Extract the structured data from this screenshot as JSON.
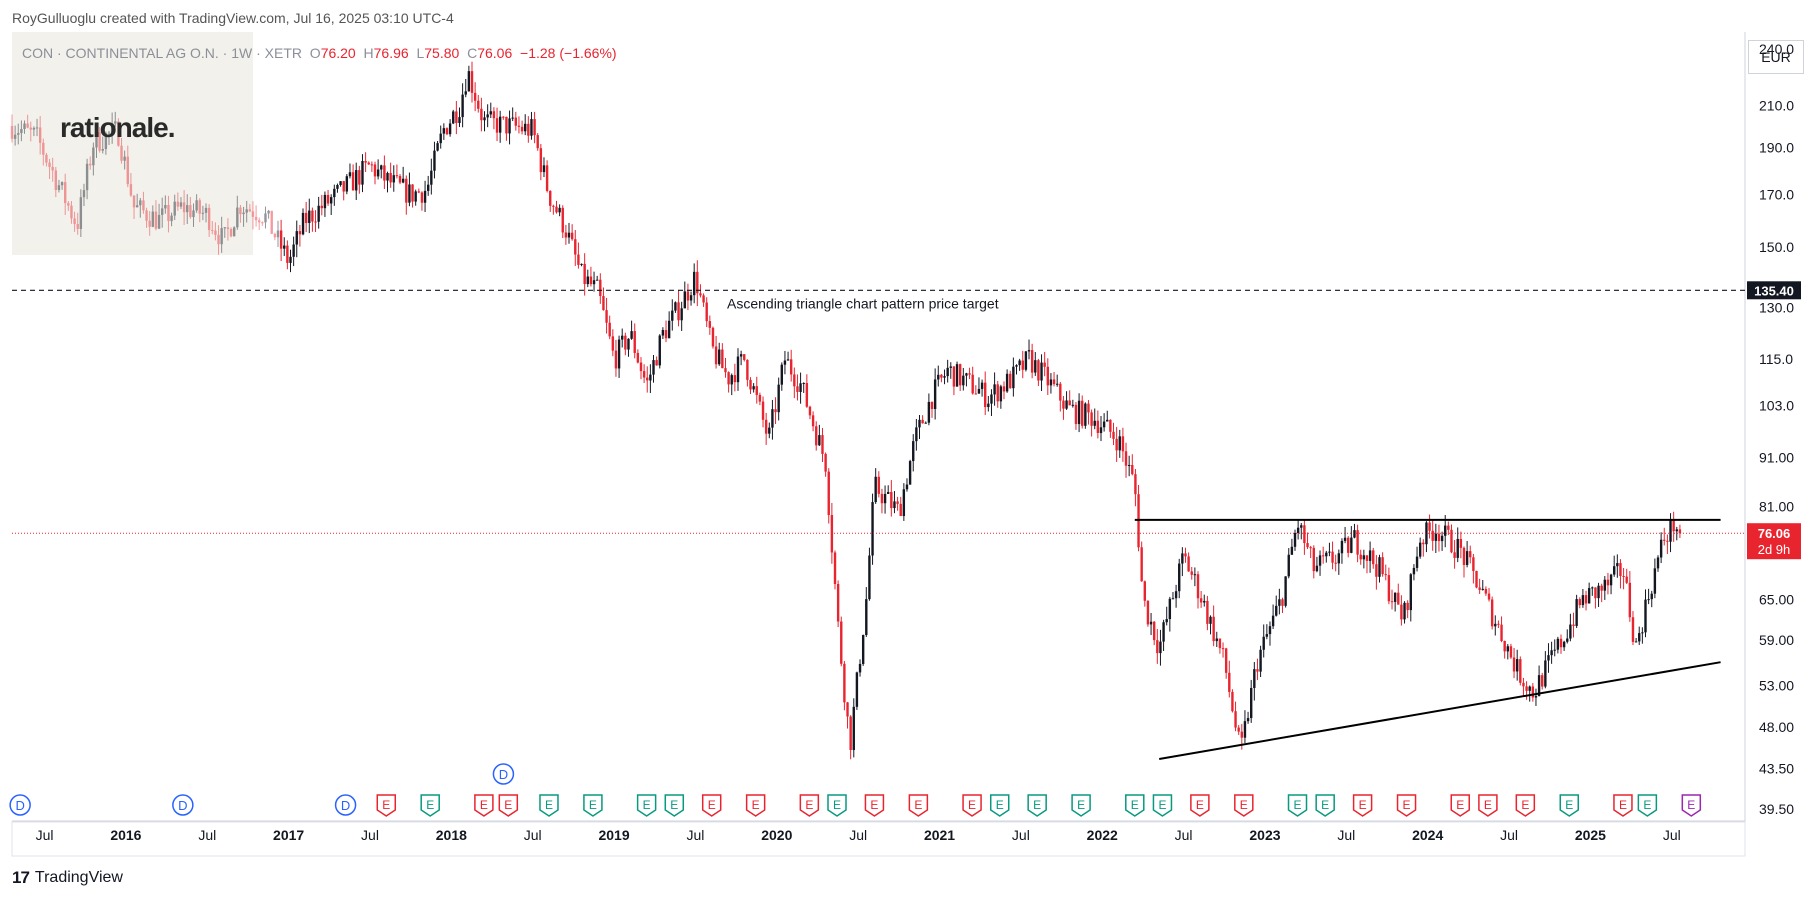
{
  "header": {
    "credit": "RoyGulluoglu created with TradingView.com, Jul 16, 2025 03:10 UTC-4",
    "symbol_desc": "CON · CONTINENTAL AG O.N. · 1W · XETR",
    "open_label": "O",
    "open": "76.20",
    "high_label": "H",
    "high": "76.96",
    "low_label": "L",
    "low": "75.80",
    "close_label": "C",
    "close": "76.06",
    "change": "−1.28 (−1.66%)"
  },
  "logo_text": "rationale.",
  "currency": "EUR",
  "footer": {
    "brand": "TradingView",
    "mark": "17"
  },
  "colors": {
    "up": "#131722",
    "down": "#e8242f",
    "accent": "#e8242f",
    "event_d": "#2962ff",
    "event_e_red": "#e8242f",
    "event_e_green": "#089981"
  },
  "chart_data": {
    "type": "candlestick",
    "price_axis_ticks": [
      240.0,
      210.0,
      190.0,
      170.0,
      150.0,
      130.0,
      115.0,
      103.0,
      91.0,
      81.0,
      65.0,
      59.0,
      53.0,
      48.0,
      43.5,
      39.5
    ],
    "time_axis_ticks": [
      {
        "label": "Jul",
        "t": 2015.5
      },
      {
        "label": "2016",
        "t": 2016.0
      },
      {
        "label": "Jul",
        "t": 2016.5
      },
      {
        "label": "2017",
        "t": 2017.0
      },
      {
        "label": "Jul",
        "t": 2017.5
      },
      {
        "label": "2018",
        "t": 2018.0
      },
      {
        "label": "Jul",
        "t": 2018.5
      },
      {
        "label": "2019",
        "t": 2019.0
      },
      {
        "label": "Jul",
        "t": 2019.5
      },
      {
        "label": "2020",
        "t": 2020.0
      },
      {
        "label": "Jul",
        "t": 2020.5
      },
      {
        "label": "2021",
        "t": 2021.0
      },
      {
        "label": "Jul",
        "t": 2021.5
      },
      {
        "label": "2022",
        "t": 2022.0
      },
      {
        "label": "Jul",
        "t": 2022.5
      },
      {
        "label": "2023",
        "t": 2023.0
      },
      {
        "label": "Jul",
        "t": 2023.5
      },
      {
        "label": "2024",
        "t": 2024.0
      },
      {
        "label": "Jul",
        "t": 2024.5
      },
      {
        "label": "2025",
        "t": 2025.0
      },
      {
        "label": "Jul",
        "t": 2025.5
      }
    ],
    "y_scale": "log",
    "ylim": [
      38.5,
      250
    ],
    "xlim": [
      2015.3,
      2025.95
    ],
    "price_path": [
      [
        2015.3,
        200
      ],
      [
        2015.45,
        195
      ],
      [
        2015.6,
        172
      ],
      [
        2015.7,
        158
      ],
      [
        2015.8,
        192
      ],
      [
        2015.95,
        198
      ],
      [
        2016.05,
        165
      ],
      [
        2016.2,
        160
      ],
      [
        2016.35,
        165
      ],
      [
        2016.5,
        162
      ],
      [
        2016.6,
        152
      ],
      [
        2016.7,
        166
      ],
      [
        2016.85,
        162
      ],
      [
        2017.0,
        145
      ],
      [
        2017.1,
        160
      ],
      [
        2017.3,
        170
      ],
      [
        2017.5,
        182
      ],
      [
        2017.6,
        176
      ],
      [
        2017.75,
        170
      ],
      [
        2017.85,
        172
      ],
      [
        2017.95,
        198
      ],
      [
        2018.05,
        210
      ],
      [
        2018.1,
        228
      ],
      [
        2018.2,
        202
      ],
      [
        2018.35,
        200
      ],
      [
        2018.5,
        198
      ],
      [
        2018.6,
        170
      ],
      [
        2018.7,
        157
      ],
      [
        2018.8,
        140
      ],
      [
        2018.9,
        135
      ],
      [
        2019.0,
        115
      ],
      [
        2019.1,
        122
      ],
      [
        2019.2,
        108
      ],
      [
        2019.3,
        122
      ],
      [
        2019.4,
        130
      ],
      [
        2019.5,
        140
      ],
      [
        2019.6,
        118
      ],
      [
        2019.7,
        110
      ],
      [
        2019.8,
        115
      ],
      [
        2019.95,
        95
      ],
      [
        2020.05,
        115
      ],
      [
        2020.15,
        108
      ],
      [
        2020.3,
        90
      ],
      [
        2020.38,
        60
      ],
      [
        2020.45,
        46
      ],
      [
        2020.55,
        65
      ],
      [
        2020.6,
        85
      ],
      [
        2020.75,
        80
      ],
      [
        2020.85,
        95
      ],
      [
        2020.95,
        105
      ],
      [
        2021.05,
        112
      ],
      [
        2021.2,
        108
      ],
      [
        2021.3,
        105
      ],
      [
        2021.45,
        110
      ],
      [
        2021.55,
        115
      ],
      [
        2021.65,
        110
      ],
      [
        2021.8,
        102
      ],
      [
        2021.95,
        100
      ],
      [
        2022.1,
        95
      ],
      [
        2022.2,
        85
      ],
      [
        2022.25,
        65
      ],
      [
        2022.35,
        58
      ],
      [
        2022.5,
        72
      ],
      [
        2022.6,
        66
      ],
      [
        2022.75,
        56
      ],
      [
        2022.85,
        45
      ],
      [
        2022.95,
        56
      ],
      [
        2023.1,
        65
      ],
      [
        2023.2,
        78
      ],
      [
        2023.3,
        70
      ],
      [
        2023.45,
        72
      ],
      [
        2023.55,
        75
      ],
      [
        2023.7,
        70
      ],
      [
        2023.85,
        62
      ],
      [
        2023.95,
        75
      ],
      [
        2024.05,
        77
      ],
      [
        2024.2,
        73
      ],
      [
        2024.3,
        68
      ],
      [
        2024.45,
        60
      ],
      [
        2024.55,
        55
      ],
      [
        2024.65,
        52
      ],
      [
        2024.75,
        56
      ],
      [
        2024.85,
        60
      ],
      [
        2024.95,
        65
      ],
      [
        2025.1,
        67
      ],
      [
        2025.2,
        70
      ],
      [
        2025.28,
        58
      ],
      [
        2025.35,
        65
      ],
      [
        2025.45,
        75
      ],
      [
        2025.52,
        78
      ],
      [
        2025.55,
        76.06
      ]
    ],
    "last_price": 76.06,
    "last_price_label": "76.06",
    "countdown": "2d 9h",
    "target_price": 135.4,
    "target_price_label": "135.40",
    "target_annotation": "Ascending triangle chart pattern price target",
    "resistance_line": {
      "t_start": 2022.2,
      "t_end": 2025.8,
      "price": 78.5
    },
    "support_line": {
      "t_start": 2022.35,
      "p_start": 44.5,
      "t_end": 2025.8,
      "p_end": 56.0
    },
    "events": [
      {
        "label": "D",
        "t": 2015.35,
        "kind": "D",
        "row": 0
      },
      {
        "label": "D",
        "t": 2016.35,
        "kind": "D",
        "row": 0
      },
      {
        "label": "D",
        "t": 2017.35,
        "kind": "D",
        "row": 0
      },
      {
        "label": "D",
        "t": 2018.32,
        "kind": "D",
        "row": 1
      },
      {
        "label": "E",
        "t": 2017.6,
        "kind": "Er",
        "row": 0
      },
      {
        "label": "E",
        "t": 2017.87,
        "kind": "Eg",
        "row": 0
      },
      {
        "label": "E",
        "t": 2018.2,
        "kind": "Er",
        "row": 0
      },
      {
        "label": "E",
        "t": 2018.35,
        "kind": "Er",
        "row": 0
      },
      {
        "label": "E",
        "t": 2018.6,
        "kind": "Eg",
        "row": 0
      },
      {
        "label": "E",
        "t": 2018.87,
        "kind": "Eg",
        "row": 0
      },
      {
        "label": "E",
        "t": 2019.2,
        "kind": "Eg",
        "row": 0
      },
      {
        "label": "E",
        "t": 2019.37,
        "kind": "Eg",
        "row": 0
      },
      {
        "label": "E",
        "t": 2019.6,
        "kind": "Er",
        "row": 0
      },
      {
        "label": "E",
        "t": 2019.87,
        "kind": "Er",
        "row": 0
      },
      {
        "label": "E",
        "t": 2020.2,
        "kind": "Er",
        "row": 0
      },
      {
        "label": "E",
        "t": 2020.37,
        "kind": "Eg",
        "row": 0
      },
      {
        "label": "E",
        "t": 2020.6,
        "kind": "Er",
        "row": 0
      },
      {
        "label": "E",
        "t": 2020.87,
        "kind": "Er",
        "row": 0
      },
      {
        "label": "E",
        "t": 2021.2,
        "kind": "Er",
        "row": 0
      },
      {
        "label": "E",
        "t": 2021.37,
        "kind": "Eg",
        "row": 0
      },
      {
        "label": "E",
        "t": 2021.6,
        "kind": "Eg",
        "row": 0
      },
      {
        "label": "E",
        "t": 2021.87,
        "kind": "Eg",
        "row": 0
      },
      {
        "label": "E",
        "t": 2022.2,
        "kind": "Eg",
        "row": 0
      },
      {
        "label": "E",
        "t": 2022.37,
        "kind": "Eg",
        "row": 0
      },
      {
        "label": "E",
        "t": 2022.6,
        "kind": "Er",
        "row": 0
      },
      {
        "label": "E",
        "t": 2022.87,
        "kind": "Er",
        "row": 0
      },
      {
        "label": "E",
        "t": 2023.2,
        "kind": "Eg",
        "row": 0
      },
      {
        "label": "E",
        "t": 2023.37,
        "kind": "Eg",
        "row": 0
      },
      {
        "label": "E",
        "t": 2023.6,
        "kind": "Er",
        "row": 0
      },
      {
        "label": "E",
        "t": 2023.87,
        "kind": "Er",
        "row": 0
      },
      {
        "label": "E",
        "t": 2024.2,
        "kind": "Er",
        "row": 0
      },
      {
        "label": "E",
        "t": 2024.37,
        "kind": "Er",
        "row": 0
      },
      {
        "label": "E",
        "t": 2024.6,
        "kind": "Er",
        "row": 0
      },
      {
        "label": "E",
        "t": 2024.87,
        "kind": "Eg",
        "row": 0
      },
      {
        "label": "E",
        "t": 2025.2,
        "kind": "Er",
        "row": 0
      },
      {
        "label": "E",
        "t": 2025.35,
        "kind": "Eg",
        "row": 0
      },
      {
        "label": "E",
        "t": 2025.62,
        "kind": "Ep",
        "row": 0
      }
    ]
  }
}
